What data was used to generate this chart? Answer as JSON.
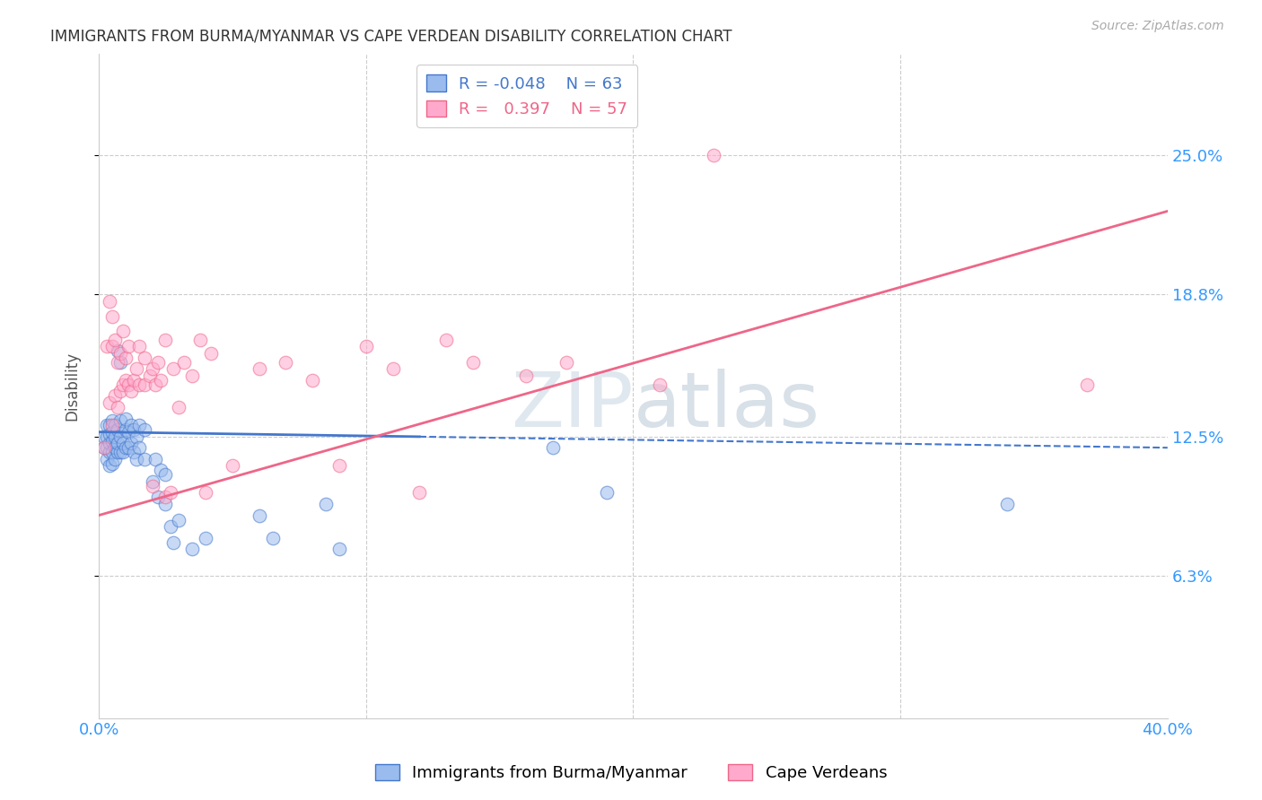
{
  "title": "IMMIGRANTS FROM BURMA/MYANMAR VS CAPE VERDEAN DISABILITY CORRELATION CHART",
  "source": "Source: ZipAtlas.com",
  "ylabel": "Disability",
  "ytick_labels": [
    "6.3%",
    "12.5%",
    "18.8%",
    "25.0%"
  ],
  "ytick_values": [
    0.063,
    0.125,
    0.188,
    0.25
  ],
  "xlim": [
    0.0,
    0.4
  ],
  "ylim": [
    0.0,
    0.295
  ],
  "legend_R_blue": "-0.048",
  "legend_N_blue": "63",
  "legend_R_pink": "0.397",
  "legend_N_pink": "57",
  "blue_color": "#99BBEE",
  "pink_color": "#FFAACC",
  "trendline_blue_color": "#4477CC",
  "trendline_pink_color": "#EE6688",
  "blue_scatter": [
    [
      0.002,
      0.12
    ],
    [
      0.002,
      0.125
    ],
    [
      0.003,
      0.115
    ],
    [
      0.003,
      0.12
    ],
    [
      0.003,
      0.125
    ],
    [
      0.003,
      0.13
    ],
    [
      0.004,
      0.112
    ],
    [
      0.004,
      0.118
    ],
    [
      0.004,
      0.122
    ],
    [
      0.004,
      0.126
    ],
    [
      0.004,
      0.13
    ],
    [
      0.005,
      0.113
    ],
    [
      0.005,
      0.118
    ],
    [
      0.005,
      0.123
    ],
    [
      0.005,
      0.127
    ],
    [
      0.005,
      0.132
    ],
    [
      0.006,
      0.115
    ],
    [
      0.006,
      0.12
    ],
    [
      0.006,
      0.125
    ],
    [
      0.006,
      0.13
    ],
    [
      0.007,
      0.118
    ],
    [
      0.007,
      0.122
    ],
    [
      0.007,
      0.128
    ],
    [
      0.007,
      0.163
    ],
    [
      0.008,
      0.118
    ],
    [
      0.008,
      0.125
    ],
    [
      0.008,
      0.132
    ],
    [
      0.008,
      0.158
    ],
    [
      0.009,
      0.118
    ],
    [
      0.009,
      0.122
    ],
    [
      0.01,
      0.12
    ],
    [
      0.01,
      0.128
    ],
    [
      0.01,
      0.133
    ],
    [
      0.011,
      0.12
    ],
    [
      0.011,
      0.127
    ],
    [
      0.012,
      0.122
    ],
    [
      0.012,
      0.13
    ],
    [
      0.013,
      0.118
    ],
    [
      0.013,
      0.128
    ],
    [
      0.014,
      0.115
    ],
    [
      0.014,
      0.125
    ],
    [
      0.015,
      0.12
    ],
    [
      0.015,
      0.13
    ],
    [
      0.017,
      0.115
    ],
    [
      0.017,
      0.128
    ],
    [
      0.02,
      0.105
    ],
    [
      0.021,
      0.115
    ],
    [
      0.022,
      0.098
    ],
    [
      0.023,
      0.11
    ],
    [
      0.025,
      0.095
    ],
    [
      0.025,
      0.108
    ],
    [
      0.027,
      0.085
    ],
    [
      0.028,
      0.078
    ],
    [
      0.03,
      0.088
    ],
    [
      0.035,
      0.075
    ],
    [
      0.04,
      0.08
    ],
    [
      0.06,
      0.09
    ],
    [
      0.065,
      0.08
    ],
    [
      0.085,
      0.095
    ],
    [
      0.09,
      0.075
    ],
    [
      0.17,
      0.12
    ],
    [
      0.19,
      0.1
    ],
    [
      0.34,
      0.095
    ]
  ],
  "pink_scatter": [
    [
      0.002,
      0.12
    ],
    [
      0.003,
      0.165
    ],
    [
      0.004,
      0.14
    ],
    [
      0.004,
      0.185
    ],
    [
      0.005,
      0.13
    ],
    [
      0.005,
      0.165
    ],
    [
      0.005,
      0.178
    ],
    [
      0.006,
      0.143
    ],
    [
      0.006,
      0.168
    ],
    [
      0.007,
      0.138
    ],
    [
      0.007,
      0.158
    ],
    [
      0.008,
      0.145
    ],
    [
      0.008,
      0.162
    ],
    [
      0.009,
      0.148
    ],
    [
      0.009,
      0.172
    ],
    [
      0.01,
      0.15
    ],
    [
      0.01,
      0.16
    ],
    [
      0.011,
      0.148
    ],
    [
      0.011,
      0.165
    ],
    [
      0.012,
      0.145
    ],
    [
      0.013,
      0.15
    ],
    [
      0.014,
      0.155
    ],
    [
      0.015,
      0.148
    ],
    [
      0.015,
      0.165
    ],
    [
      0.017,
      0.148
    ],
    [
      0.017,
      0.16
    ],
    [
      0.019,
      0.152
    ],
    [
      0.02,
      0.103
    ],
    [
      0.02,
      0.155
    ],
    [
      0.021,
      0.148
    ],
    [
      0.022,
      0.158
    ],
    [
      0.023,
      0.15
    ],
    [
      0.025,
      0.098
    ],
    [
      0.025,
      0.168
    ],
    [
      0.027,
      0.1
    ],
    [
      0.028,
      0.155
    ],
    [
      0.03,
      0.138
    ],
    [
      0.032,
      0.158
    ],
    [
      0.035,
      0.152
    ],
    [
      0.038,
      0.168
    ],
    [
      0.04,
      0.1
    ],
    [
      0.042,
      0.162
    ],
    [
      0.05,
      0.112
    ],
    [
      0.06,
      0.155
    ],
    [
      0.07,
      0.158
    ],
    [
      0.08,
      0.15
    ],
    [
      0.09,
      0.112
    ],
    [
      0.1,
      0.165
    ],
    [
      0.11,
      0.155
    ],
    [
      0.12,
      0.1
    ],
    [
      0.13,
      0.168
    ],
    [
      0.14,
      0.158
    ],
    [
      0.16,
      0.152
    ],
    [
      0.175,
      0.158
    ],
    [
      0.21,
      0.148
    ],
    [
      0.23,
      0.25
    ],
    [
      0.37,
      0.148
    ]
  ],
  "background_color": "#FFFFFF",
  "grid_color": "#CCCCCC"
}
